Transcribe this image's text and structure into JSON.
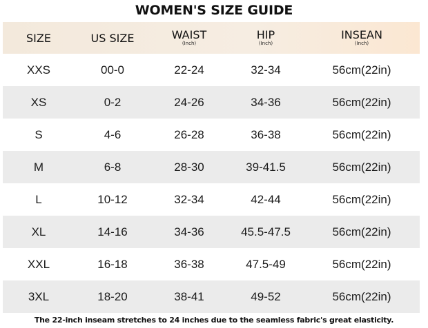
{
  "title": "WOMEN'S SIZE GUIDE",
  "table": {
    "headers": [
      {
        "label": "SIZE",
        "unit": ""
      },
      {
        "label": "US SIZE",
        "unit": ""
      },
      {
        "label": "WAIST",
        "unit": "(Inch)"
      },
      {
        "label": "HIP",
        "unit": "(Inch)"
      },
      {
        "label": "INSEAN",
        "unit": "(Inch)"
      }
    ],
    "rows": [
      [
        "XXS",
        "00-0",
        "22-24",
        "32-34",
        "56cm(22in)"
      ],
      [
        "XS",
        "0-2",
        "24-26",
        "34-36",
        "56cm(22in)"
      ],
      [
        "S",
        "4-6",
        "26-28",
        "36-38",
        "56cm(22in)"
      ],
      [
        "M",
        "6-8",
        "28-30",
        "39-41.5",
        "56cm(22in)"
      ],
      [
        "L",
        "10-12",
        "32-34",
        "42-44",
        "56cm(22in)"
      ],
      [
        "XL",
        "14-16",
        "34-36",
        "45.5-47.5",
        "56cm(22in)"
      ],
      [
        "XXL",
        "16-18",
        "36-38",
        "47.5-49",
        "56cm(22in)"
      ],
      [
        "3XL",
        "18-20",
        "38-41",
        "49-52",
        "56cm(22in)"
      ]
    ]
  },
  "footer": "The 22-inch inseam stretches to 24 inches due to the seamless fabric's great elasticity.",
  "colors": {
    "header_bg": "#f6ede2",
    "stripe_bg": "#ebebeb",
    "text": "#111111"
  }
}
